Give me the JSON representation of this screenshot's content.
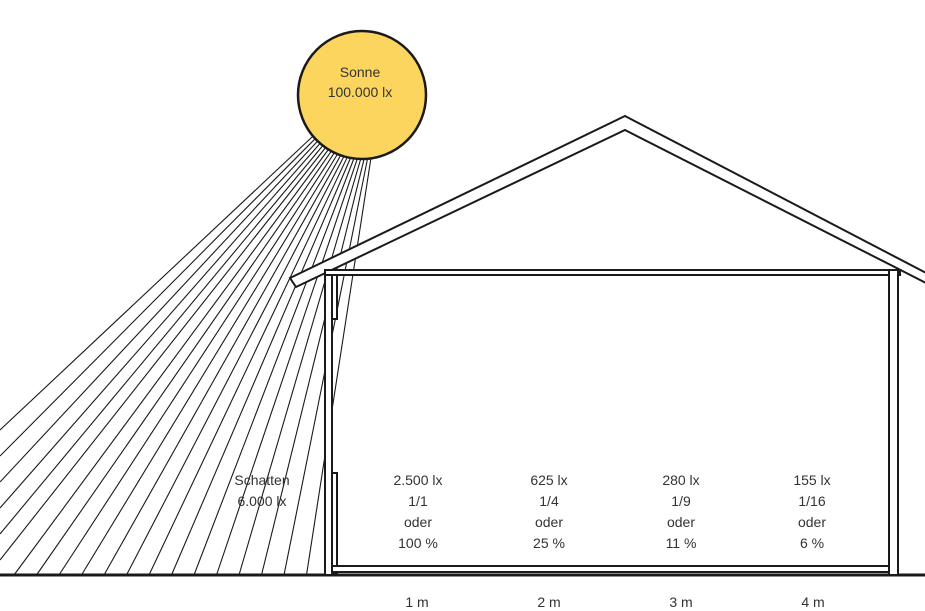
{
  "sun": {
    "name": "Sonne",
    "lux": "100.000 lx",
    "color": "#FCD55E"
  },
  "shadow": {
    "label": "Schatten",
    "lux": "6.000 lx"
  },
  "zones": [
    {
      "lux": "2.500 lx",
      "ratio": "1/1",
      "or": "oder",
      "percent": "100 %"
    },
    {
      "lux": "625 lx",
      "ratio": "1/4",
      "or": "oder",
      "percent": "25 %"
    },
    {
      "lux": "280 lx",
      "ratio": "1/9",
      "or": "oder",
      "percent": "11 %"
    },
    {
      "lux": "155 lx",
      "ratio": "1/16",
      "or": "oder",
      "percent": "6 %"
    }
  ],
  "distances": [
    "1 m",
    "2 m",
    "3 m",
    "4 m"
  ],
  "colors": {
    "line": "#1a1a1a",
    "text": "#333333"
  }
}
